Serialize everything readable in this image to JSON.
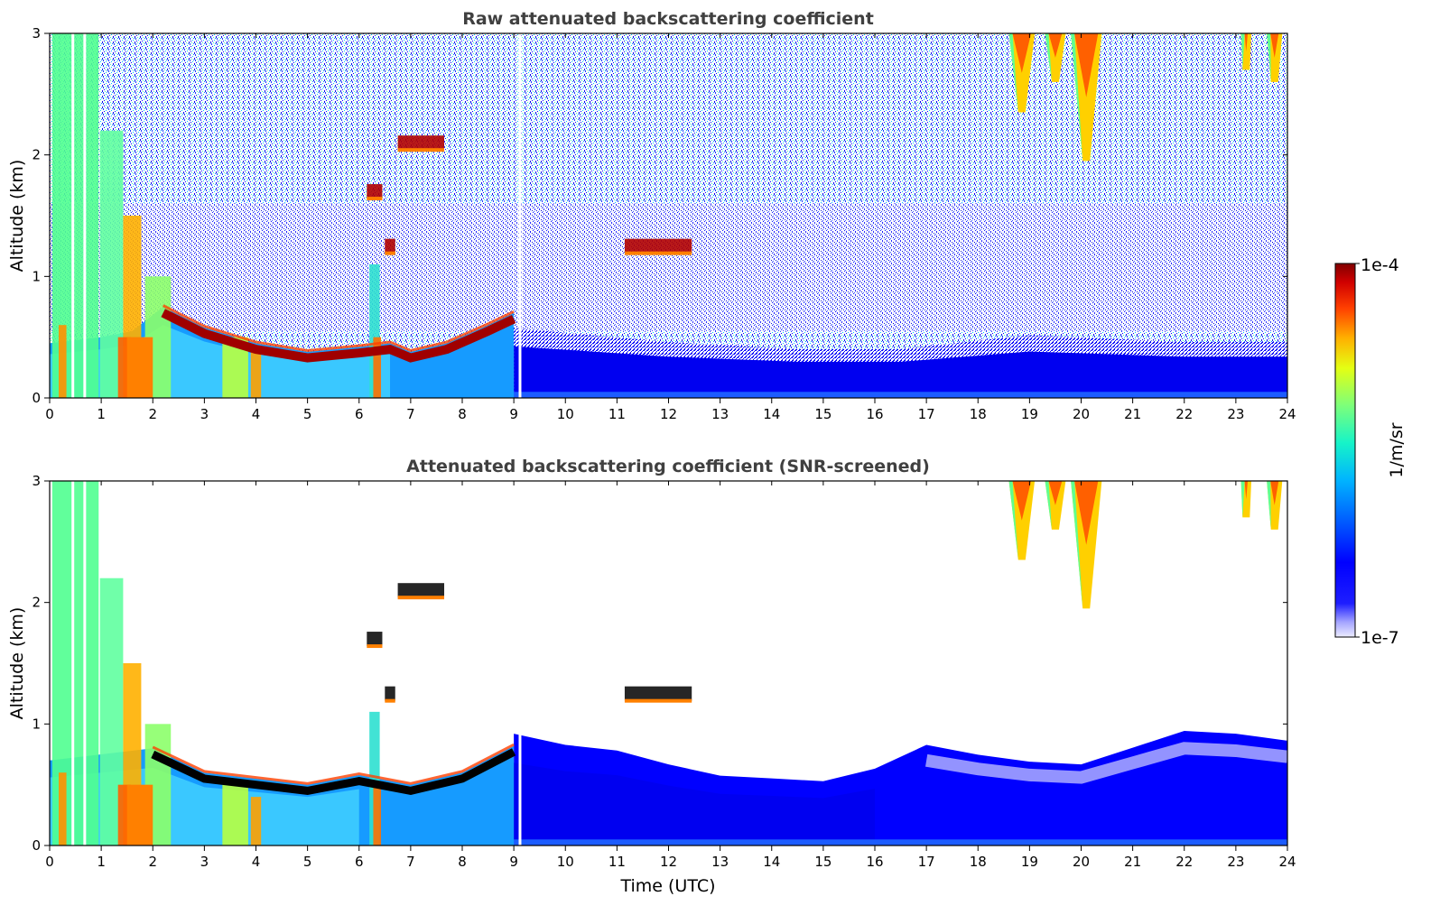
{
  "chart_data": [
    {
      "type": "heatmap",
      "title": "Raw attenuated backscattering coefficient",
      "xlabel": "",
      "ylabel": "Altitude (km)",
      "xlim": [
        0,
        24
      ],
      "ylim": [
        0,
        3
      ],
      "xticks": [
        "0",
        "1",
        "2",
        "3",
        "4",
        "5",
        "6",
        "7",
        "8",
        "9",
        "10",
        "11",
        "12",
        "13",
        "14",
        "15",
        "16",
        "17",
        "18",
        "19",
        "20",
        "21",
        "22",
        "23",
        "24"
      ],
      "yticks": [
        "0",
        "1",
        "2",
        "3"
      ],
      "screened": false,
      "features": {
        "boundary_layer_top_km": [
          [
            0.0,
            0.45
          ],
          [
            1.0,
            0.5
          ],
          [
            1.6,
            0.55
          ],
          [
            2.2,
            0.75
          ],
          [
            3.0,
            0.58
          ],
          [
            4.0,
            0.45
          ],
          [
            5.0,
            0.38
          ],
          [
            6.0,
            0.42
          ],
          [
            6.6,
            0.45
          ],
          [
            7.0,
            0.38
          ],
          [
            7.7,
            0.45
          ],
          [
            8.5,
            0.6
          ],
          [
            9.0,
            0.7
          ]
        ],
        "night_aerosol_top_km": [
          [
            9.0,
            0.5
          ],
          [
            12.0,
            0.4
          ],
          [
            14.5,
            0.35
          ],
          [
            16.5,
            0.35
          ],
          [
            19.0,
            0.45
          ],
          [
            22.0,
            0.4
          ],
          [
            24.0,
            0.4
          ]
        ],
        "high_clouds": [
          {
            "start": 18.6,
            "end": 19.1,
            "base_km": 2.35
          },
          {
            "start": 19.3,
            "end": 19.7,
            "base_km": 2.6
          },
          {
            "start": 19.8,
            "end": 20.4,
            "base_km": 1.95
          },
          {
            "start": 23.1,
            "end": 23.3,
            "base_km": 2.7
          },
          {
            "start": 23.6,
            "end": 23.9,
            "base_km": 2.6
          }
        ],
        "elevated_clouds": [
          {
            "time": 7.2,
            "alt_km": 2.1,
            "width_h": 0.9
          },
          {
            "time": 6.3,
            "alt_km": 1.7,
            "width_h": 0.3
          },
          {
            "time": 6.6,
            "alt_km": 1.25,
            "width_h": 0.2
          },
          {
            "time": 11.8,
            "alt_km": 1.25,
            "width_h": 1.3
          }
        ],
        "data_gaps_hours": [
          0.45,
          0.68,
          9.12
        ]
      }
    },
    {
      "type": "heatmap",
      "title": "Attenuated backscattering coefficient (SNR-screened)",
      "xlabel": "Time (UTC)",
      "ylabel": "Altitude (km)",
      "xlim": [
        0,
        24
      ],
      "ylim": [
        0,
        3
      ],
      "xticks": [
        "0",
        "1",
        "2",
        "3",
        "4",
        "5",
        "6",
        "7",
        "8",
        "9",
        "10",
        "11",
        "12",
        "13",
        "14",
        "15",
        "16",
        "17",
        "18",
        "19",
        "20",
        "21",
        "22",
        "23",
        "24"
      ],
      "yticks": [
        "0",
        "1",
        "2",
        "3"
      ],
      "screened": true,
      "features": {
        "boundary_layer_top_km": [
          [
            0.0,
            0.7
          ],
          [
            1.0,
            0.75
          ],
          [
            2.0,
            0.8
          ],
          [
            3.0,
            0.6
          ],
          [
            4.0,
            0.55
          ],
          [
            5.0,
            0.5
          ],
          [
            6.0,
            0.58
          ],
          [
            7.0,
            0.5
          ],
          [
            8.0,
            0.6
          ],
          [
            9.0,
            0.82
          ]
        ],
        "night_aerosol_top_km": [
          [
            9.0,
            0.8
          ],
          [
            10.0,
            0.72
          ],
          [
            11.0,
            0.68
          ],
          [
            12.0,
            0.58
          ],
          [
            13.0,
            0.5
          ],
          [
            14.0,
            0.48
          ],
          [
            15.0,
            0.46
          ],
          [
            16.0,
            0.55
          ],
          [
            17.0,
            0.72
          ],
          [
            18.0,
            0.65
          ],
          [
            19.0,
            0.6
          ],
          [
            20.0,
            0.58
          ],
          [
            21.0,
            0.7
          ],
          [
            22.0,
            0.82
          ],
          [
            23.0,
            0.8
          ],
          [
            24.0,
            0.75
          ]
        ]
      }
    }
  ],
  "colorbar": {
    "label": "1/m/sr",
    "max_label": "1e-4",
    "min_label": "1e-7",
    "colormap": "jet",
    "scale": "log"
  }
}
